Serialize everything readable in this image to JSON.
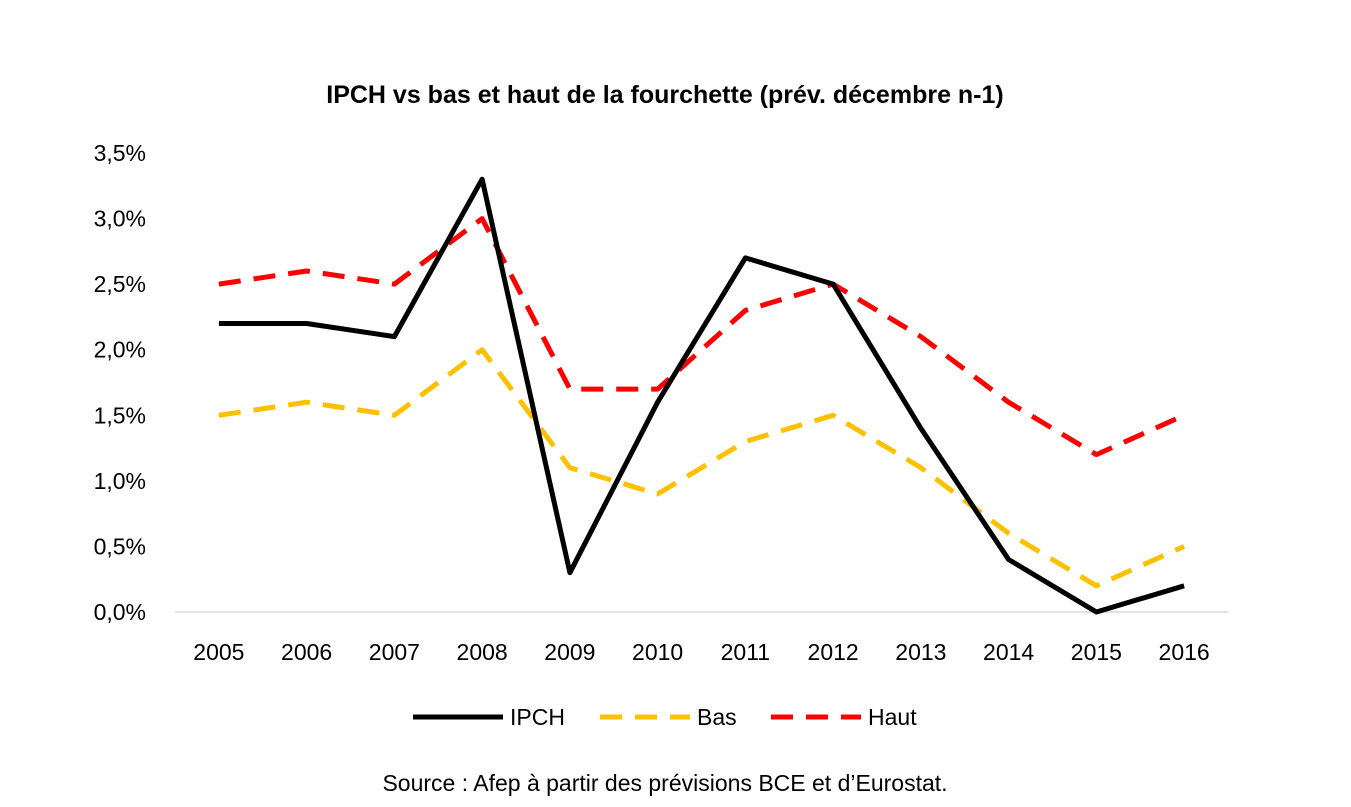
{
  "chart_data": {
    "type": "line",
    "title": "IPCH vs bas et haut de la fourchette (prév. décembre n-1)",
    "source": "Source : Afep à partir des prévisions BCE et d’Eurostat.",
    "x": [
      "2005",
      "2006",
      "2007",
      "2008",
      "2009",
      "2010",
      "2011",
      "2012",
      "2013",
      "2014",
      "2015",
      "2016"
    ],
    "ylim": [
      0,
      3.5
    ],
    "y_ticks": [
      0,
      0.5,
      1.0,
      1.5,
      2.0,
      2.5,
      3.0,
      3.5
    ],
    "y_tick_labels": [
      "0,0%",
      "0,5%",
      "1,0%",
      "1,5%",
      "2,0%",
      "2,5%",
      "3,0%",
      "3,5%"
    ],
    "grid": false,
    "legend_position": "bottom",
    "series": [
      {
        "name": "IPCH",
        "style": "solid",
        "color": "#000000",
        "values": [
          2.2,
          2.2,
          2.1,
          3.3,
          0.3,
          1.6,
          2.7,
          2.5,
          1.4,
          0.4,
          0.0,
          0.2
        ]
      },
      {
        "name": "Bas",
        "style": "dashed",
        "color": "#FFC000",
        "values": [
          1.5,
          1.6,
          1.5,
          2.0,
          1.1,
          0.9,
          1.3,
          1.5,
          1.1,
          0.6,
          0.2,
          0.5
        ]
      },
      {
        "name": "Haut",
        "style": "dashed",
        "color": "#FF0000",
        "values": [
          2.5,
          2.6,
          2.5,
          3.0,
          1.7,
          1.7,
          2.3,
          2.5,
          2.1,
          1.6,
          1.2,
          1.5
        ]
      }
    ]
  }
}
